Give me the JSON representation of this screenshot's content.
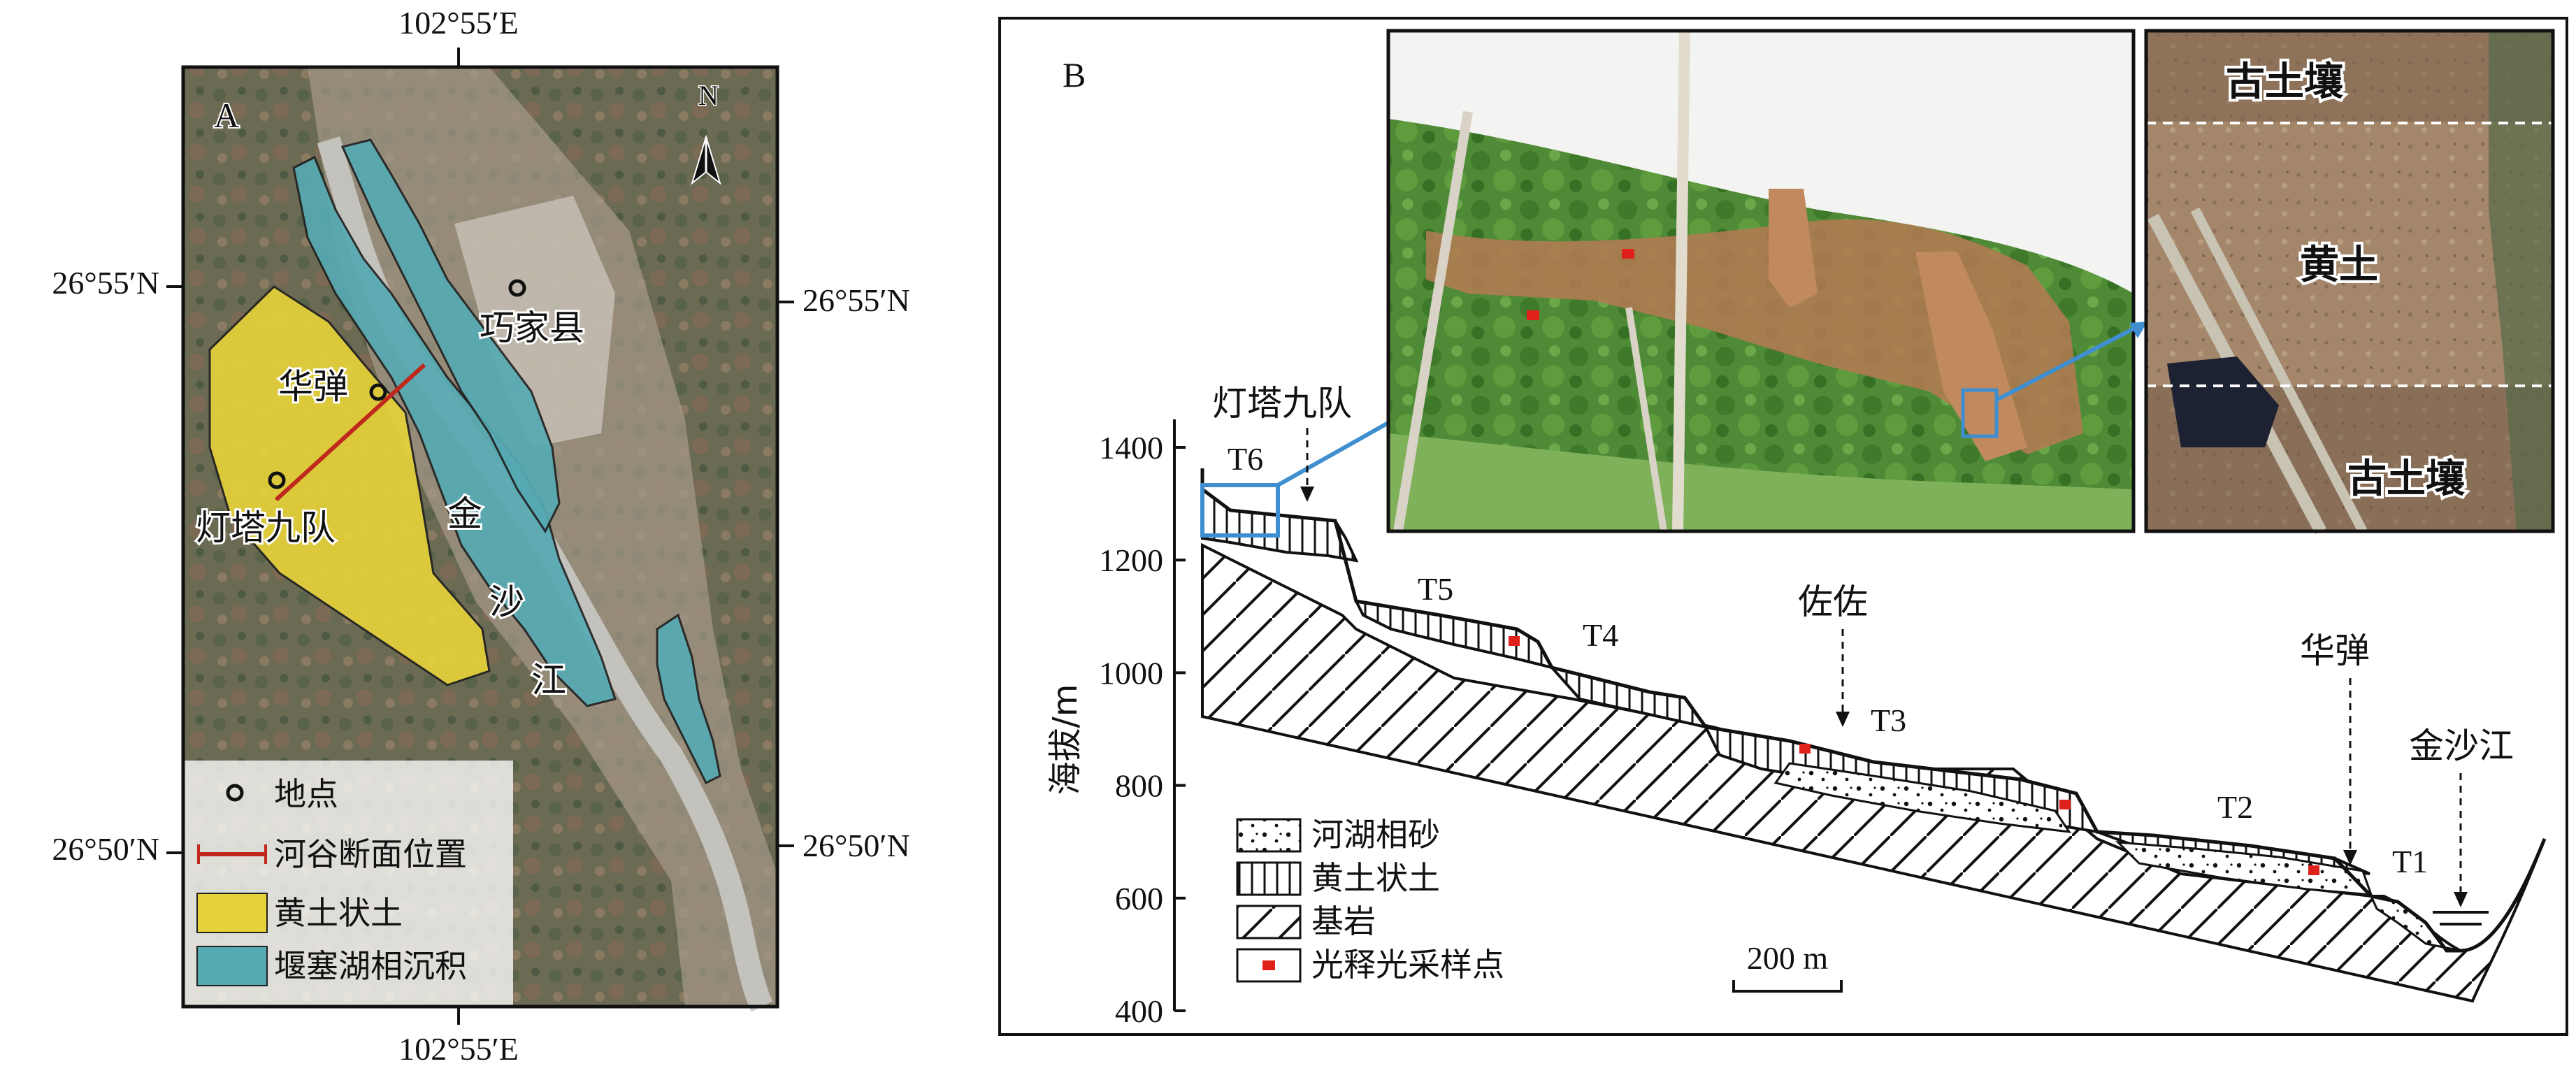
{
  "panel_a": {
    "label": "A",
    "coords": {
      "top_lon": "102°55′E",
      "bottom_lon": "102°55′E",
      "left_lat_north": "26°55′N",
      "left_lat_south": "26°50′N",
      "right_lat_north": "26°55′N",
      "right_lat_south": "26°50′N"
    },
    "north_label": "N",
    "places": {
      "qiaojia": "巧家县",
      "huadan": "华弹",
      "dengta": "灯塔九队"
    },
    "river_chars": [
      "金",
      "沙",
      "江"
    ],
    "legend": [
      {
        "icon": "site-circle-icon",
        "label": "地点"
      },
      {
        "icon": "profile-line-icon",
        "label": "河谷断面位置"
      },
      {
        "icon": "loess-swatch-icon",
        "label": "黄土状土",
        "color": "#e5d23a"
      },
      {
        "icon": "lake-swatch-icon",
        "label": "堰塞湖相沉积",
        "color": "#56aab3"
      }
    ]
  },
  "panel_b": {
    "label": "B",
    "ylabel": "海拔/m",
    "yticks": [
      "400",
      "600",
      "800",
      "1000",
      "1200",
      "1400"
    ],
    "ylim": [
      400,
      1450
    ],
    "terraces": [
      "T6",
      "T5",
      "T4",
      "T3",
      "T2",
      "T1"
    ],
    "locations": {
      "dengta": "灯塔九队",
      "zuozuo": "佐佐",
      "huadan": "华弹",
      "river": "金沙江"
    },
    "scale_bar": "200 m",
    "legend": [
      {
        "icon": "lacustrine-sand-swatch",
        "label": "河湖相砂"
      },
      {
        "icon": "loess-like-swatch",
        "label": "黄土状土"
      },
      {
        "icon": "bedrock-swatch",
        "label": "基岩"
      },
      {
        "icon": "osl-sample-swatch",
        "label": "光释光采样点",
        "color": "#e0201b"
      }
    ],
    "photo_labels": {
      "paleosol_top": "古土壤",
      "loess": "黄土",
      "paleosol_bottom": "古土壤"
    }
  },
  "colors": {
    "loess": "#e5d23a",
    "lake": "#56aab3",
    "profile_line": "#c0281e",
    "sample": "#e0201b",
    "zoom_box": "#3f8fd0"
  }
}
